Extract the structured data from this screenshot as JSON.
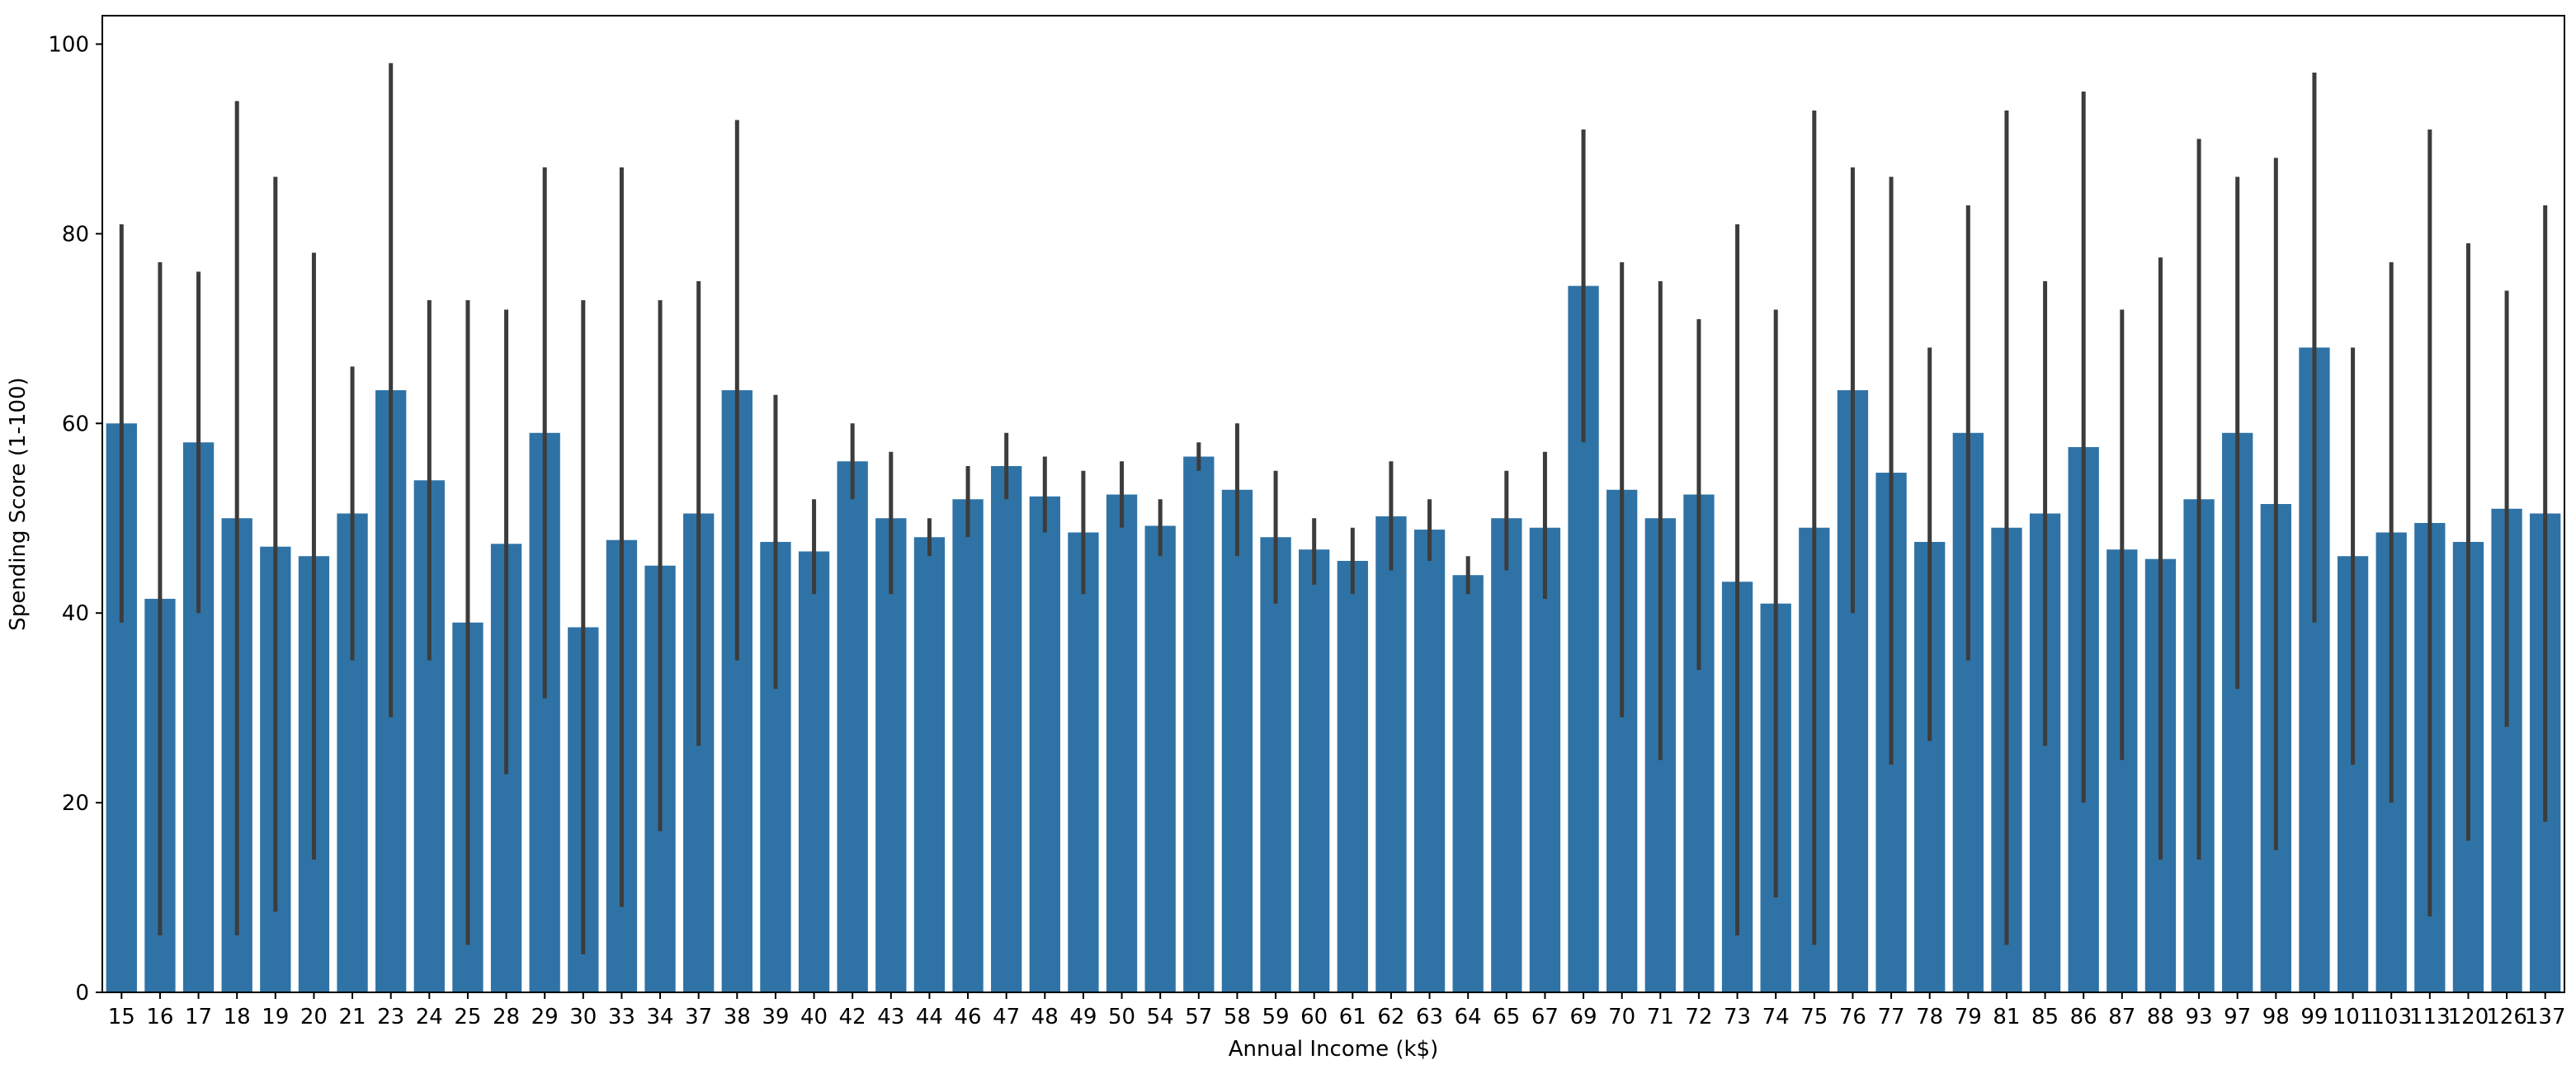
{
  "colors": {
    "bar": "#2f73a6",
    "error_bar": "#3c3c3c",
    "axis": "#000000",
    "background": "#ffffff"
  },
  "chart_data": {
    "type": "bar",
    "title": "",
    "xlabel": "Annual Income (k$)",
    "ylabel": "Spending Score (1-100)",
    "ylim": [
      0,
      103
    ],
    "yticks": [
      0,
      20,
      40,
      60,
      80,
      100
    ],
    "grid": false,
    "legend": "none",
    "categories": [
      "15",
      "16",
      "17",
      "18",
      "19",
      "20",
      "21",
      "23",
      "24",
      "25",
      "28",
      "29",
      "30",
      "33",
      "34",
      "37",
      "38",
      "39",
      "40",
      "42",
      "43",
      "44",
      "46",
      "47",
      "48",
      "49",
      "50",
      "54",
      "57",
      "58",
      "59",
      "60",
      "61",
      "62",
      "63",
      "64",
      "65",
      "67",
      "69",
      "70",
      "71",
      "72",
      "73",
      "74",
      "75",
      "76",
      "77",
      "78",
      "79",
      "81",
      "85",
      "86",
      "87",
      "88",
      "93",
      "97",
      "98",
      "99",
      "101",
      "103",
      "113",
      "120",
      "126",
      "137"
    ],
    "values": [
      60,
      41.5,
      58,
      50,
      47,
      46,
      50.5,
      63.5,
      54,
      39,
      47.3,
      59,
      38.5,
      47.7,
      45,
      50.5,
      63.5,
      47.5,
      46.5,
      56,
      50,
      48,
      52,
      55.5,
      52.3,
      48.5,
      52.5,
      49.2,
      56.5,
      53,
      48,
      46.7,
      45.5,
      50.2,
      48.8,
      44,
      50,
      49,
      74.5,
      53,
      50,
      52.5,
      43.3,
      41,
      49,
      63.5,
      54.8,
      47.5,
      59,
      49,
      50.5,
      57.5,
      46.7,
      45.7,
      52,
      59,
      51.5,
      68,
      46,
      48.5,
      49.5,
      47.5,
      51,
      50.5
    ],
    "error_bars": [
      [
        39,
        81
      ],
      [
        6,
        77
      ],
      [
        40,
        76
      ],
      [
        6,
        94
      ],
      [
        8.5,
        86
      ],
      [
        14,
        78
      ],
      [
        35,
        66
      ],
      [
        29,
        98
      ],
      [
        35,
        73
      ],
      [
        5,
        73
      ],
      [
        23,
        72
      ],
      [
        31,
        87
      ],
      [
        4,
        73
      ],
      [
        9,
        87
      ],
      [
        17,
        73
      ],
      [
        26,
        75
      ],
      [
        35,
        92
      ],
      [
        32,
        63
      ],
      [
        42,
        52
      ],
      [
        52,
        60
      ],
      [
        42,
        57
      ],
      [
        46,
        50
      ],
      [
        48,
        55.5
      ],
      [
        52,
        59
      ],
      [
        48.5,
        56.5
      ],
      [
        42,
        55
      ],
      [
        49,
        56
      ],
      [
        46,
        52
      ],
      [
        55,
        58
      ],
      [
        46,
        60
      ],
      [
        41,
        55
      ],
      [
        43,
        50
      ],
      [
        42,
        49
      ],
      [
        44.5,
        56
      ],
      [
        45.5,
        52
      ],
      [
        42,
        46
      ],
      [
        44.5,
        55
      ],
      [
        41.5,
        57
      ],
      [
        58,
        91
      ],
      [
        29,
        77
      ],
      [
        24.5,
        75
      ],
      [
        34,
        71
      ],
      [
        6,
        81
      ],
      [
        10,
        72
      ],
      [
        5,
        93
      ],
      [
        40,
        87
      ],
      [
        24,
        86
      ],
      [
        26.5,
        68
      ],
      [
        35,
        83
      ],
      [
        5,
        93
      ],
      [
        26,
        75
      ],
      [
        20,
        95
      ],
      [
        24.5,
        72
      ],
      [
        14,
        77.5
      ],
      [
        14,
        90
      ],
      [
        32,
        86
      ],
      [
        15,
        88
      ],
      [
        39,
        97
      ],
      [
        24,
        68
      ],
      [
        20,
        77
      ],
      [
        8,
        91
      ],
      [
        16,
        79
      ],
      [
        28,
        74
      ],
      [
        18,
        83
      ]
    ]
  }
}
